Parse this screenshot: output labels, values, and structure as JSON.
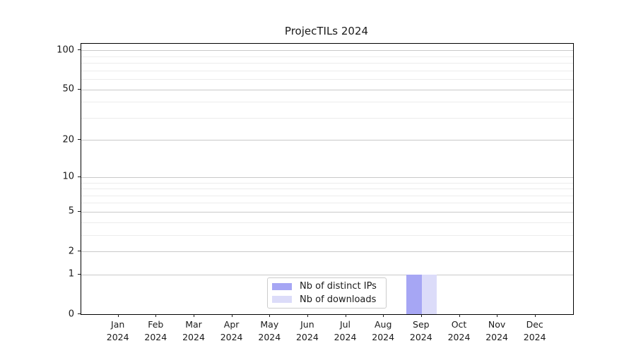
{
  "title": "ProjecTILs 2024",
  "colors": {
    "bar_distinct_ips": "#a6a6f4",
    "bar_downloads": "#dcdcf9",
    "grid_major": "#c9c9c9",
    "grid_minor": "#ececec",
    "spine": "#000000",
    "legend_border": "#cccccc",
    "text": "#1a1a1a",
    "background": "#ffffff"
  },
  "legend": {
    "items": [
      {
        "label": "Nb of distinct IPs",
        "color": "#a6a6f4"
      },
      {
        "label": "Nb of downloads",
        "color": "#dcdcf9"
      }
    ]
  },
  "chart_data": {
    "type": "bar",
    "title": "ProjecTILs 2024",
    "categories": [
      "Jan 2024",
      "Feb 2024",
      "Mar 2024",
      "Apr 2024",
      "May 2024",
      "Jun 2024",
      "Jul 2024",
      "Aug 2024",
      "Sep 2024",
      "Oct 2024",
      "Nov 2024",
      "Dec 2024"
    ],
    "series": [
      {
        "name": "Nb of distinct IPs",
        "color": "#a6a6f4",
        "values": [
          0,
          0,
          0,
          0,
          0,
          0,
          0,
          0,
          1,
          0,
          0,
          0
        ]
      },
      {
        "name": "Nb of downloads",
        "color": "#dcdcf9",
        "values": [
          0,
          0,
          0,
          0,
          0,
          0,
          0,
          0,
          1,
          0,
          0,
          0
        ]
      }
    ],
    "xlabel": "",
    "ylabel": "",
    "yscale": "log1p",
    "ylim": [
      0,
      112
    ],
    "y_ticks_major": [
      0,
      1,
      2,
      5,
      10,
      20,
      50,
      100
    ],
    "y_ticks_minor": [
      3,
      4,
      6,
      7,
      8,
      9,
      30,
      40,
      60,
      70,
      80,
      90
    ],
    "grid": true,
    "legend_position": "lower center"
  }
}
